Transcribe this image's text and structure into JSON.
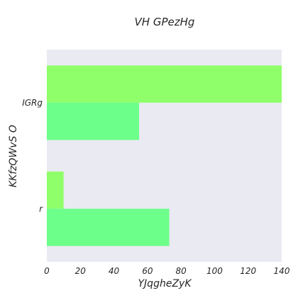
{
  "chart_data": {
    "type": "bar",
    "orientation": "horizontal",
    "title": "VH GPezHg",
    "xlabel": "YJqgheZyK",
    "ylabel": "KKfzQWvS O",
    "categories": [
      "IGRg",
      "r"
    ],
    "series": [
      {
        "color": "#8fff6a",
        "values": [
          140,
          10
        ]
      },
      {
        "color": "#6cff8a",
        "values": [
          55,
          73
        ]
      }
    ],
    "xlim": [
      0,
      140
    ],
    "xticks": [
      0,
      20,
      40,
      60,
      80,
      100,
      120,
      140
    ],
    "grid": false,
    "legend": "none",
    "plot_background": "#eaeaf2"
  }
}
